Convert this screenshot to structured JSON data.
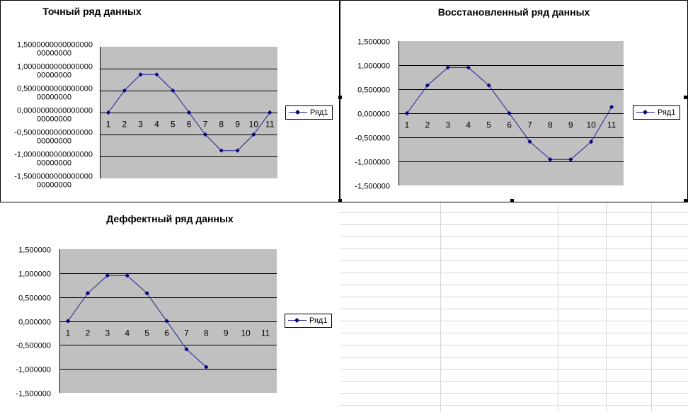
{
  "chart_data": [
    {
      "type": "line",
      "title": "Точный ряд данных",
      "categories": [
        "1",
        "2",
        "3",
        "4",
        "5",
        "6",
        "7",
        "8",
        "9",
        "10",
        "11"
      ],
      "series": [
        {
          "name": "Ряд1",
          "values": [
            0,
            0.5,
            0.866,
            0.866,
            0.5,
            0,
            -0.5,
            -0.866,
            -0.866,
            -0.5,
            0
          ]
        }
      ],
      "ylim": [
        -1.5,
        1.5
      ],
      "ytick_values": [
        1.5,
        1,
        0.5,
        0,
        -0.5,
        -1,
        -1.5
      ],
      "ytick_labels": [
        [
          "1,5000000000000000",
          "00000000"
        ],
        [
          "1,0000000000000000",
          "00000000"
        ],
        [
          "0,5000000000000000",
          "00000000"
        ],
        [
          "0,0000000000000000",
          "00000000"
        ],
        [
          "-0,5000000000000000",
          "00000000"
        ],
        [
          "-1,0000000000000000",
          "00000000"
        ],
        [
          "-1,5000000000000000",
          "00000000"
        ]
      ],
      "grid": true,
      "legend": "right",
      "colors": {
        "plot_bg": "#c0c0c0",
        "line": "#1f1f8f",
        "marker": "#000080",
        "grid": "#000000"
      }
    },
    {
      "type": "line",
      "title": "Восстановленный ряд данных",
      "categories": [
        "1",
        "2",
        "3",
        "4",
        "5",
        "6",
        "7",
        "8",
        "9",
        "10",
        "11"
      ],
      "series": [
        {
          "name": "Ряд1",
          "values": [
            0,
            0.58,
            0.95,
            0.95,
            0.58,
            0,
            -0.59,
            -0.96,
            -0.96,
            -0.59,
            0.13
          ]
        }
      ],
      "ylim": [
        -1.5,
        1.5
      ],
      "ytick_values": [
        1.5,
        1,
        0.5,
        0,
        -0.5,
        -1,
        -1.5
      ],
      "ytick_labels": [
        [
          "1,500000"
        ],
        [
          "1,000000"
        ],
        [
          "0,500000"
        ],
        [
          "0,000000"
        ],
        [
          "-0,500000"
        ],
        [
          "-1,000000"
        ],
        [
          "-1,500000"
        ]
      ],
      "grid": true,
      "legend": "right",
      "colors": {
        "plot_bg": "#c0c0c0",
        "line": "#1f1f8f",
        "marker": "#000080",
        "grid": "#000000"
      }
    },
    {
      "type": "line",
      "title": "Деффектный ряд данных",
      "categories": [
        "1",
        "2",
        "3",
        "4",
        "5",
        "6",
        "7",
        "8",
        "9",
        "10",
        "11"
      ],
      "series": [
        {
          "name": "Ряд1",
          "values": [
            0,
            0.58,
            0.95,
            0.95,
            0.58,
            0,
            -0.59,
            -0.96,
            null,
            null,
            null
          ]
        }
      ],
      "ylim": [
        -1.5,
        1.5
      ],
      "ytick_values": [
        1.5,
        1,
        0.5,
        0,
        -0.5,
        -1,
        -1.5
      ],
      "ytick_labels": [
        [
          "1,500000"
        ],
        [
          "1,000000"
        ],
        [
          "0,500000"
        ],
        [
          "0,000000"
        ],
        [
          "-0,500000"
        ],
        [
          "-1,000000"
        ],
        [
          "-1,500000"
        ]
      ],
      "grid": true,
      "legend": "right",
      "colors": {
        "plot_bg": "#c0c0c0",
        "line": "#1f1f8f",
        "marker": "#000080",
        "grid": "#000000"
      }
    }
  ]
}
